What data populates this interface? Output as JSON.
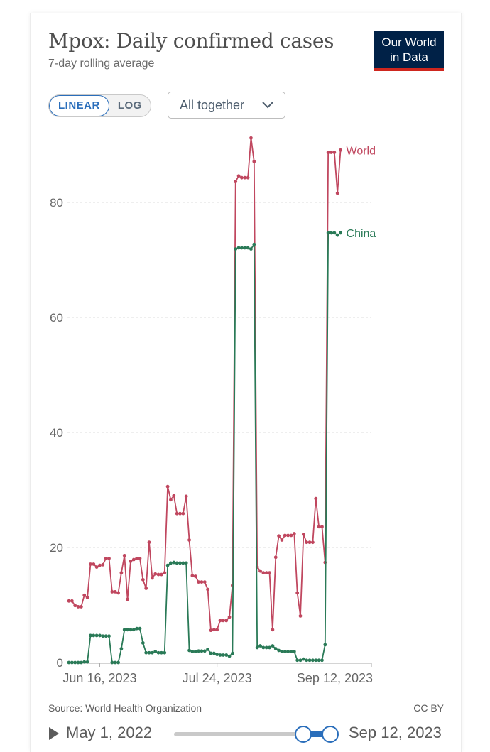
{
  "header": {
    "title": "Mpox: Daily confirmed cases",
    "subtitle": "7-day rolling average",
    "logo_line1": "Our World",
    "logo_line2": "in Data"
  },
  "controls": {
    "scale_linear": "LINEAR",
    "scale_log": "LOG",
    "scale_selected": "LINEAR",
    "dropdown_label": "All together"
  },
  "footer": {
    "source": "Source: World Health Organization",
    "license": "CC BY"
  },
  "timeline": {
    "start_label": "May 1, 2022",
    "end_label": "Sep 12, 2023"
  },
  "colors": {
    "world": "#c0475f",
    "china": "#2a7a57",
    "grid": "#dddddd",
    "accent": "#2a6ebb"
  },
  "chart_data": {
    "type": "line",
    "title": "Mpox: Daily confirmed cases",
    "subtitle": "7-day rolling average",
    "xlabel": "",
    "ylabel": "",
    "ylim": [
      0,
      90
    ],
    "yticks": [
      0,
      20,
      40,
      60,
      80
    ],
    "x_range": [
      "2023-06-06",
      "2023-09-12"
    ],
    "xticks": [
      {
        "date": "2023-06-16",
        "label": "Jun 16, 2023"
      },
      {
        "date": "2023-07-24",
        "label": "Jul 24, 2023"
      },
      {
        "date": "2023-09-12",
        "label": "Sep 12, 2023"
      }
    ],
    "grid": true,
    "series": [
      {
        "name": "World",
        "color": "#c0475f",
        "points": [
          [
            "2023-06-06",
            10.7
          ],
          [
            "2023-06-07",
            10.7
          ],
          [
            "2023-06-08",
            9.9
          ],
          [
            "2023-06-09",
            9.7
          ],
          [
            "2023-06-10",
            9.7
          ],
          [
            "2023-06-11",
            11.7
          ],
          [
            "2023-06-12",
            11.3
          ],
          [
            "2023-06-13",
            17.1
          ],
          [
            "2023-06-14",
            17.1
          ],
          [
            "2023-06-15",
            16.6
          ],
          [
            "2023-06-16",
            16.9
          ],
          [
            "2023-06-17",
            17.0
          ],
          [
            "2023-06-18",
            18.1
          ],
          [
            "2023-06-19",
            18.1
          ],
          [
            "2023-06-20",
            12.3
          ],
          [
            "2023-06-21",
            12.3
          ],
          [
            "2023-06-22",
            12.1
          ],
          [
            "2023-06-23",
            15.6
          ],
          [
            "2023-06-24",
            18.6
          ],
          [
            "2023-06-25",
            11.0
          ],
          [
            "2023-06-26",
            17.6
          ],
          [
            "2023-06-27",
            17.9
          ],
          [
            "2023-06-28",
            18.1
          ],
          [
            "2023-06-29",
            18.1
          ],
          [
            "2023-06-30",
            14.4
          ],
          [
            "2023-07-01",
            12.9
          ],
          [
            "2023-07-02",
            20.9
          ],
          [
            "2023-07-03",
            14.7
          ],
          [
            "2023-07-04",
            15.4
          ],
          [
            "2023-07-05",
            15.3
          ],
          [
            "2023-07-06",
            15.3
          ],
          [
            "2023-07-07",
            15.6
          ],
          [
            "2023-07-08",
            30.6
          ],
          [
            "2023-07-09",
            28.3
          ],
          [
            "2023-07-10",
            29.0
          ],
          [
            "2023-07-11",
            25.9
          ],
          [
            "2023-07-12",
            25.9
          ],
          [
            "2023-07-13",
            25.9
          ],
          [
            "2023-07-14",
            28.9
          ],
          [
            "2023-07-15",
            21.3
          ],
          [
            "2023-07-16",
            15.1
          ],
          [
            "2023-07-17",
            15.0
          ],
          [
            "2023-07-18",
            14.0
          ],
          [
            "2023-07-19",
            14.0
          ],
          [
            "2023-07-20",
            14.0
          ],
          [
            "2023-07-21",
            12.7
          ],
          [
            "2023-07-22",
            5.6
          ],
          [
            "2023-07-23",
            5.7
          ],
          [
            "2023-07-24",
            5.7
          ],
          [
            "2023-07-25",
            7.3
          ],
          [
            "2023-07-26",
            7.3
          ],
          [
            "2023-07-27",
            7.3
          ],
          [
            "2023-07-28",
            7.9
          ],
          [
            "2023-07-29",
            13.4
          ],
          [
            "2023-07-30",
            83.6
          ],
          [
            "2023-07-31",
            84.6
          ],
          [
            "2023-08-01",
            84.3
          ],
          [
            "2023-08-02",
            84.3
          ],
          [
            "2023-08-03",
            84.3
          ],
          [
            "2023-08-04",
            91.2
          ],
          [
            "2023-08-05",
            87.1
          ],
          [
            "2023-08-06",
            16.6
          ],
          [
            "2023-08-07",
            15.9
          ],
          [
            "2023-08-08",
            15.6
          ],
          [
            "2023-08-09",
            15.6
          ],
          [
            "2023-08-10",
            15.6
          ],
          [
            "2023-08-11",
            5.7
          ],
          [
            "2023-08-12",
            18.3
          ],
          [
            "2023-08-13",
            22.0
          ],
          [
            "2023-08-14",
            21.3
          ],
          [
            "2023-08-15",
            22.1
          ],
          [
            "2023-08-16",
            22.1
          ],
          [
            "2023-08-17",
            22.1
          ],
          [
            "2023-08-18",
            22.4
          ],
          [
            "2023-08-19",
            12.1
          ],
          [
            "2023-08-20",
            8.1
          ],
          [
            "2023-08-21",
            22.3
          ],
          [
            "2023-08-22",
            20.9
          ],
          [
            "2023-08-23",
            20.9
          ],
          [
            "2023-08-24",
            20.9
          ],
          [
            "2023-08-25",
            28.5
          ],
          [
            "2023-08-26",
            23.6
          ],
          [
            "2023-08-27",
            23.6
          ],
          [
            "2023-08-28",
            17.4
          ],
          [
            "2023-08-29",
            88.7
          ],
          [
            "2023-08-30",
            88.7
          ],
          [
            "2023-08-31",
            88.7
          ],
          [
            "2023-09-01",
            81.6
          ],
          [
            "2023-09-02",
            89.1
          ]
        ]
      },
      {
        "name": "China",
        "color": "#2a7a57",
        "points": [
          [
            "2023-06-06",
            0.0
          ],
          [
            "2023-06-07",
            0.0
          ],
          [
            "2023-06-08",
            0.0
          ],
          [
            "2023-06-09",
            0.0
          ],
          [
            "2023-06-10",
            0.0
          ],
          [
            "2023-06-11",
            0.1
          ],
          [
            "2023-06-12",
            0.1
          ],
          [
            "2023-06-13",
            4.7
          ],
          [
            "2023-06-14",
            4.7
          ],
          [
            "2023-06-15",
            4.7
          ],
          [
            "2023-06-16",
            4.7
          ],
          [
            "2023-06-17",
            4.6
          ],
          [
            "2023-06-18",
            4.6
          ],
          [
            "2023-06-19",
            4.6
          ],
          [
            "2023-06-20",
            0.0
          ],
          [
            "2023-06-21",
            0.0
          ],
          [
            "2023-06-22",
            0.0
          ],
          [
            "2023-06-23",
            2.4
          ],
          [
            "2023-06-24",
            5.7
          ],
          [
            "2023-06-25",
            5.7
          ],
          [
            "2023-06-26",
            5.7
          ],
          [
            "2023-06-27",
            5.7
          ],
          [
            "2023-06-28",
            5.9
          ],
          [
            "2023-06-29",
            5.9
          ],
          [
            "2023-06-30",
            3.4
          ],
          [
            "2023-07-01",
            1.7
          ],
          [
            "2023-07-02",
            1.7
          ],
          [
            "2023-07-03",
            1.7
          ],
          [
            "2023-07-04",
            1.9
          ],
          [
            "2023-07-05",
            1.7
          ],
          [
            "2023-07-06",
            1.7
          ],
          [
            "2023-07-07",
            1.7
          ],
          [
            "2023-07-08",
            16.9
          ],
          [
            "2023-07-09",
            17.3
          ],
          [
            "2023-07-10",
            17.4
          ],
          [
            "2023-07-11",
            17.3
          ],
          [
            "2023-07-12",
            17.3
          ],
          [
            "2023-07-13",
            17.3
          ],
          [
            "2023-07-14",
            17.3
          ],
          [
            "2023-07-15",
            2.1
          ],
          [
            "2023-07-16",
            1.9
          ],
          [
            "2023-07-17",
            1.9
          ],
          [
            "2023-07-18",
            2.0
          ],
          [
            "2023-07-19",
            2.0
          ],
          [
            "2023-07-20",
            2.0
          ],
          [
            "2023-07-21",
            2.3
          ],
          [
            "2023-07-22",
            1.6
          ],
          [
            "2023-07-23",
            1.6
          ],
          [
            "2023-07-24",
            1.4
          ],
          [
            "2023-07-25",
            1.3
          ],
          [
            "2023-07-26",
            1.3
          ],
          [
            "2023-07-27",
            1.3
          ],
          [
            "2023-07-28",
            1.1
          ],
          [
            "2023-07-29",
            1.6
          ],
          [
            "2023-07-30",
            71.9
          ],
          [
            "2023-07-31",
            72.1
          ],
          [
            "2023-08-01",
            72.1
          ],
          [
            "2023-08-02",
            72.1
          ],
          [
            "2023-08-03",
            72.1
          ],
          [
            "2023-08-04",
            71.9
          ],
          [
            "2023-08-05",
            72.7
          ],
          [
            "2023-08-06",
            2.6
          ],
          [
            "2023-08-07",
            2.9
          ],
          [
            "2023-08-08",
            2.6
          ],
          [
            "2023-08-09",
            2.6
          ],
          [
            "2023-08-10",
            2.6
          ],
          [
            "2023-08-11",
            2.9
          ],
          [
            "2023-08-12",
            2.4
          ],
          [
            "2023-08-13",
            2.1
          ],
          [
            "2023-08-14",
            1.9
          ],
          [
            "2023-08-15",
            1.9
          ],
          [
            "2023-08-16",
            1.9
          ],
          [
            "2023-08-17",
            1.9
          ],
          [
            "2023-08-18",
            1.9
          ],
          [
            "2023-08-19",
            0.4
          ],
          [
            "2023-08-20",
            0.4
          ],
          [
            "2023-08-21",
            0.6
          ],
          [
            "2023-08-22",
            0.4
          ],
          [
            "2023-08-23",
            0.4
          ],
          [
            "2023-08-24",
            0.4
          ],
          [
            "2023-08-25",
            0.4
          ],
          [
            "2023-08-26",
            0.4
          ],
          [
            "2023-08-27",
            0.4
          ],
          [
            "2023-08-28",
            3.1
          ],
          [
            "2023-08-29",
            74.7
          ],
          [
            "2023-08-30",
            74.7
          ],
          [
            "2023-08-31",
            74.7
          ],
          [
            "2023-09-01",
            74.3
          ],
          [
            "2023-09-02",
            74.7
          ]
        ]
      }
    ]
  }
}
